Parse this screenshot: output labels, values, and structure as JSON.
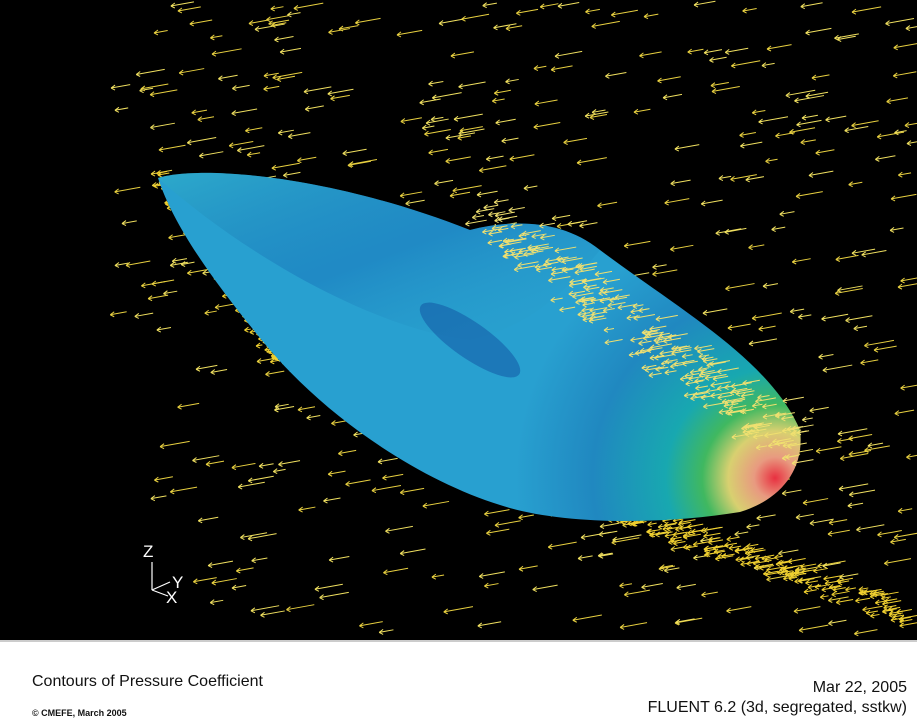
{
  "viewport": {
    "axes": {
      "z": "Z",
      "y": "Y",
      "x": "X"
    }
  },
  "footer": {
    "title": "Contours of Pressure Coefficient",
    "copyright": "© CMEFE, March 2005",
    "date": "Mar 22, 2005",
    "software": "FLUENT 6.2 (3d, segregated, sstkw)"
  }
}
